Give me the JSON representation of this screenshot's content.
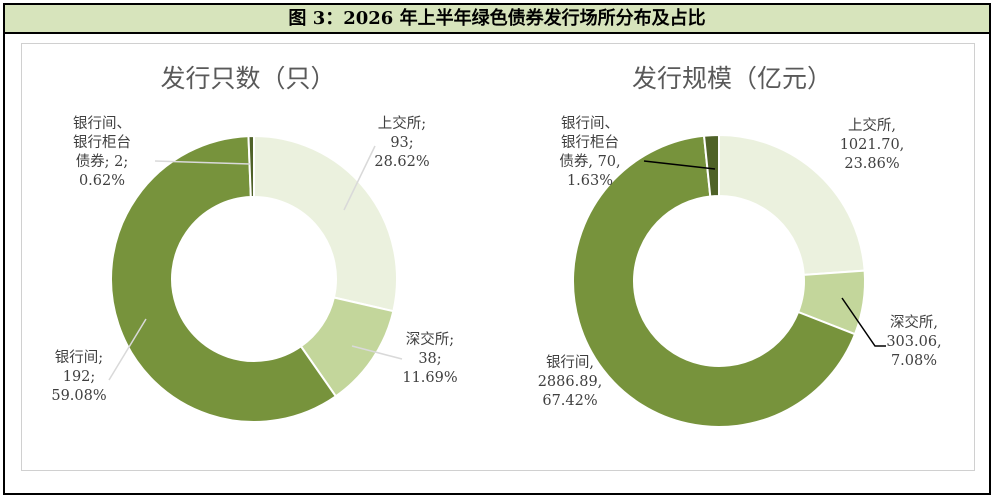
{
  "figure": {
    "caption": "图 3：2026 年上半年绿色债券发行场所分布及占比"
  },
  "colors": {
    "header_bg": "#d7e4bc",
    "sse": "#ebf1de",
    "szse": "#c3d69b",
    "interbank": "#77933c",
    "interbank_counter": "#4f6228"
  },
  "chart_data": [
    {
      "type": "pie",
      "donut": true,
      "title": "发行只数（只）",
      "slices": [
        {
          "label": "上交所",
          "value": 93,
          "percent": "28.62%",
          "color": "#ebf1de",
          "lines": [
            "上交所;",
            "93;",
            "28.62%"
          ]
        },
        {
          "label": "深交所",
          "value": 38,
          "percent": "11.69%",
          "color": "#c3d69b",
          "lines": [
            "深交所;",
            "38;",
            "11.69%"
          ]
        },
        {
          "label": "银行间",
          "value": 192,
          "percent": "59.08%",
          "color": "#77933c",
          "lines": [
            "银行间;",
            "192;",
            "59.08%"
          ]
        },
        {
          "label": "银行间、银行柜台债券",
          "value": 2,
          "percent": "0.62%",
          "color": "#4f6228",
          "lines": [
            "银行间、",
            "银行柜台",
            "债券; 2;",
            "0.62%"
          ]
        }
      ]
    },
    {
      "type": "pie",
      "donut": true,
      "title": "发行规模（亿元）",
      "slices": [
        {
          "label": "上交所",
          "value": 1021.7,
          "percent": "23.86%",
          "color": "#ebf1de",
          "lines": [
            "上交所,",
            "1021.70,",
            "23.86%"
          ]
        },
        {
          "label": "深交所",
          "value": 303.06,
          "percent": "7.08%",
          "color": "#c3d69b",
          "lines": [
            "深交所,",
            "303.06,",
            "7.08%"
          ]
        },
        {
          "label": "银行间",
          "value": 2886.89,
          "percent": "67.42%",
          "color": "#77933c",
          "lines": [
            "银行间,",
            "2886.89,",
            "67.42%"
          ]
        },
        {
          "label": "银行间、银行柜台债券",
          "value": 70,
          "percent": "1.63%",
          "color": "#4f6228",
          "lines": [
            "银行间、",
            "银行柜台",
            "债券, 70,",
            "1.63%"
          ]
        }
      ]
    }
  ]
}
